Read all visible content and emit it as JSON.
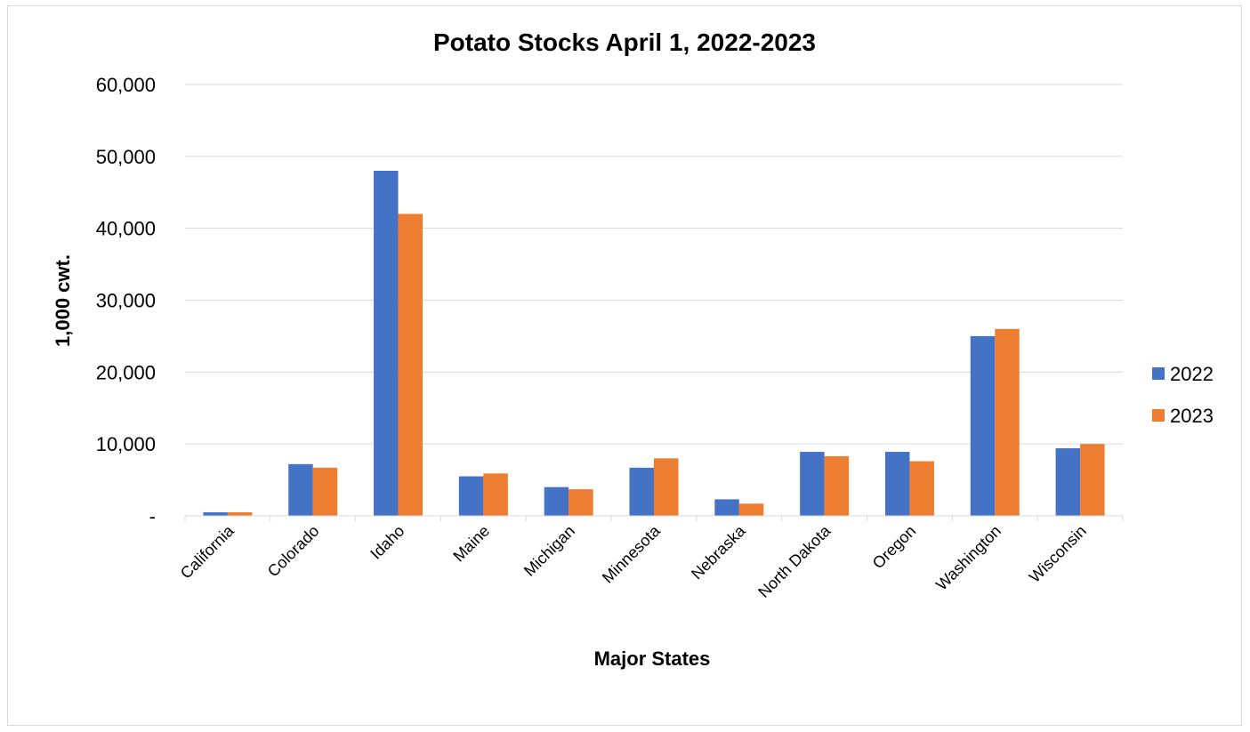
{
  "chart_data": {
    "type": "bar",
    "title": "Potato Stocks April 1, 2022-2023",
    "xlabel": "Major States",
    "ylabel": "1,000 cwt.",
    "ylim": [
      0,
      60000
    ],
    "yticks": [
      0,
      10000,
      20000,
      30000,
      40000,
      50000,
      60000
    ],
    "ytick_labels": [
      "-",
      "10,000",
      "20,000",
      "30,000",
      "40,000",
      "50,000",
      "60,000"
    ],
    "grid": true,
    "legend_position": "right",
    "categories": [
      "California",
      "Colorado",
      "Idaho",
      "Maine",
      "Michigan",
      "Minnesota",
      "Nebraska",
      "North Dakota",
      "Oregon",
      "Washington",
      "Wisconsin"
    ],
    "series": [
      {
        "name": "2022",
        "color": "#4472c4",
        "values": [
          500,
          7200,
          48000,
          5500,
          4000,
          6700,
          2300,
          8900,
          8900,
          25000,
          9400
        ]
      },
      {
        "name": "2023",
        "color": "#ed7d31",
        "values": [
          500,
          6700,
          42000,
          5900,
          3700,
          8000,
          1700,
          8300,
          7600,
          26000,
          10000
        ]
      }
    ]
  }
}
